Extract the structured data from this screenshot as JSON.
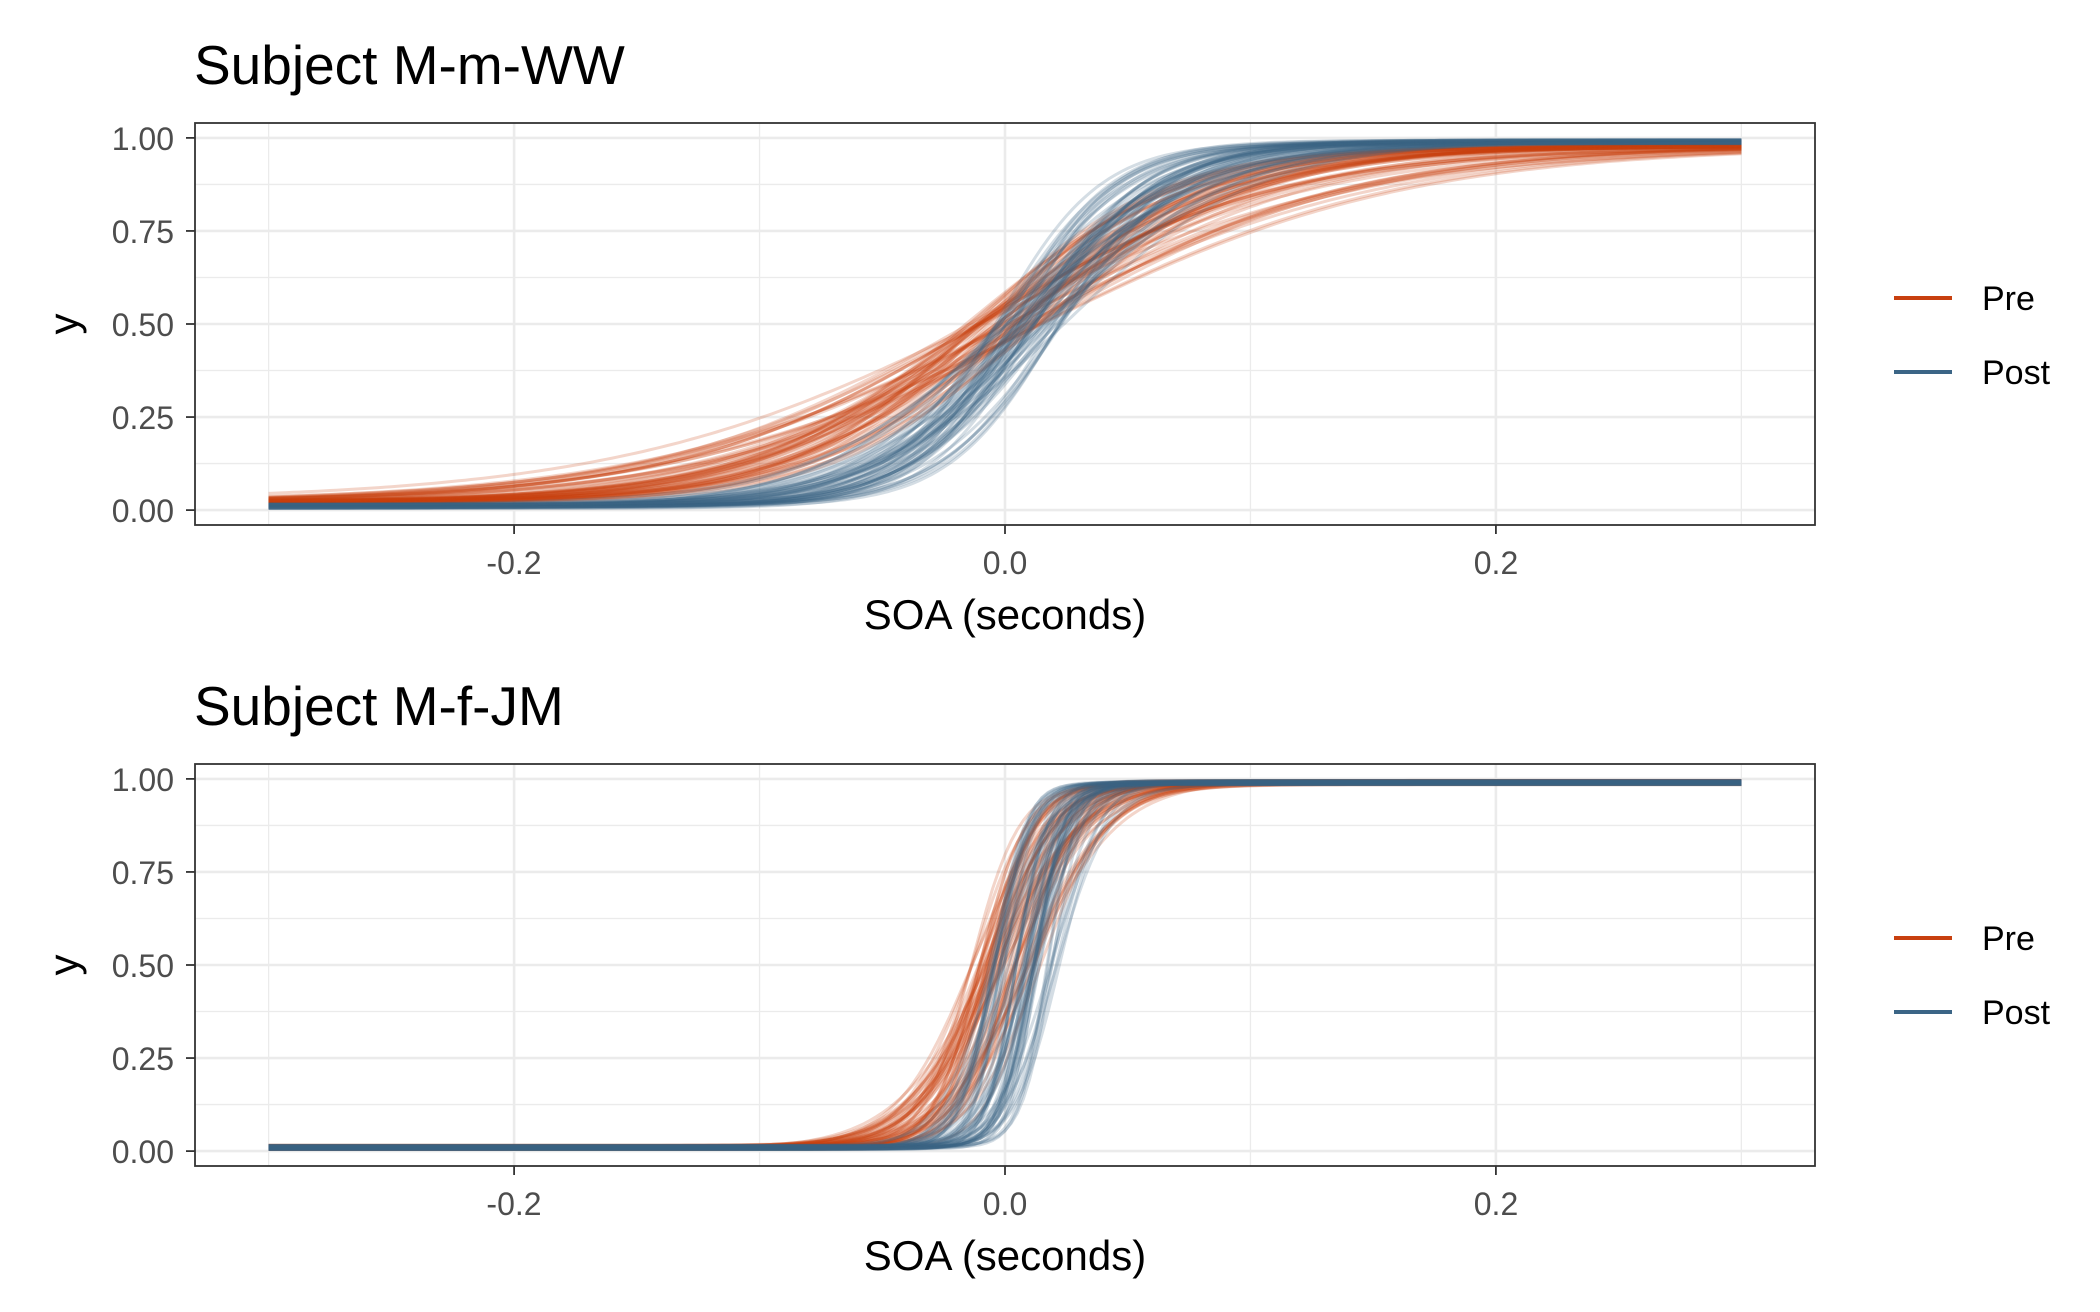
{
  "colors": {
    "pre": "#C8400F",
    "post": "#3B6586",
    "grid": "#EBEBEB",
    "frame": "#333333",
    "tick_text": "#4D4D4D"
  },
  "chart_data": [
    {
      "type": "line",
      "title": "Subject M-m-WW",
      "xlabel": "SOA (seconds)",
      "ylabel": "y",
      "xlim": [
        -0.33,
        0.33
      ],
      "ylim": [
        -0.04,
        1.04
      ],
      "x_ticks": [
        "-0.2",
        "0.0",
        "0.2"
      ],
      "y_ticks": [
        "0.00",
        "0.25",
        "0.50",
        "0.75",
        "1.00"
      ],
      "grid": true,
      "legend_position": "right",
      "legend": [
        "Pre",
        "Post"
      ],
      "x_range": [
        -0.3,
        0.3
      ],
      "series": [
        {
          "name": "Pre",
          "color": "#C8400F",
          "curve": "psychometric",
          "lower_asymptote": 0.02,
          "upper_asymptote": 0.98,
          "mean_threshold": 0.0,
          "mean_slope": 19,
          "curve_count": 60
        },
        {
          "name": "Post",
          "color": "#3B6586",
          "curve": "psychometric",
          "lower_asymptote": 0.01,
          "upper_asymptote": 0.99,
          "mean_threshold": 0.01,
          "mean_slope": 35,
          "curve_count": 60
        }
      ]
    },
    {
      "type": "line",
      "title": "Subject M-f-JM",
      "xlabel": "SOA (seconds)",
      "ylabel": "y",
      "xlim": [
        -0.33,
        0.33
      ],
      "ylim": [
        -0.04,
        1.04
      ],
      "x_ticks": [
        "-0.2",
        "0.0",
        "0.2"
      ],
      "y_ticks": [
        "0.00",
        "0.25",
        "0.50",
        "0.75",
        "1.00"
      ],
      "grid": true,
      "legend_position": "right",
      "legend": [
        "Pre",
        "Post"
      ],
      "x_range": [
        -0.3,
        0.3
      ],
      "series": [
        {
          "name": "Pre",
          "color": "#C8400F",
          "curve": "psychometric",
          "lower_asymptote": 0.01,
          "upper_asymptote": 0.99,
          "mean_threshold": 0.0,
          "mean_slope": 75,
          "curve_count": 60
        },
        {
          "name": "Post",
          "color": "#3B6586",
          "curve": "psychometric",
          "lower_asymptote": 0.01,
          "upper_asymptote": 0.99,
          "mean_threshold": 0.008,
          "mean_slope": 130,
          "curve_count": 60
        }
      ]
    }
  ]
}
